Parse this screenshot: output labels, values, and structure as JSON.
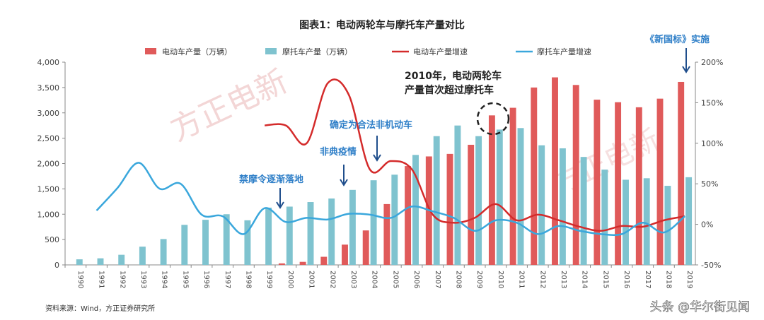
{
  "chart_data": {
    "type": "bar",
    "title": "图表1：电动两轮车与摩托车产量对比",
    "categories": [
      "1990",
      "1991",
      "1992",
      "1993",
      "1994",
      "1995",
      "1996",
      "1997",
      "1998",
      "1999",
      "2000",
      "2001",
      "2002",
      "2003",
      "2004",
      "2005",
      "2006",
      "2007",
      "2008",
      "2009",
      "2010",
      "2011",
      "2012",
      "2013",
      "2014",
      "2015",
      "2016",
      "2017",
      "2018",
      "2019"
    ],
    "series": [
      {
        "name": "电动车产量（万辆）",
        "type": "bar",
        "axis": "left",
        "color": "#e05a5a",
        "values": [
          null,
          null,
          null,
          null,
          null,
          null,
          null,
          null,
          null,
          null,
          30,
          60,
          160,
          400,
          680,
          1200,
          1950,
          2140,
          2190,
          2370,
          2950,
          3100,
          3500,
          3700,
          3550,
          3260,
          3210,
          3110,
          3280,
          3610
        ]
      },
      {
        "name": "摩托车产量（万辆）",
        "type": "bar",
        "axis": "left",
        "color": "#7fc3cf",
        "values": [
          110,
          130,
          200,
          360,
          510,
          790,
          890,
          1000,
          880,
          1130,
          1150,
          1240,
          1310,
          1480,
          1670,
          1780,
          2170,
          2540,
          2750,
          2540,
          2670,
          2700,
          2360,
          2300,
          2130,
          1880,
          1680,
          1710,
          1560,
          1730
        ]
      },
      {
        "name": "电动车产量增速",
        "type": "line",
        "axis": "right",
        "color": "#d42b2b",
        "values": [
          null,
          null,
          null,
          null,
          null,
          null,
          null,
          null,
          null,
          122,
          122,
          100,
          174,
          160,
          68,
          78,
          68,
          12,
          2,
          8,
          25,
          5,
          12,
          5,
          -3,
          -8,
          -2,
          -3,
          5,
          10
        ]
      },
      {
        "name": "摩托车产量增速",
        "type": "line",
        "axis": "right",
        "color": "#3aa7dc",
        "values": [
          null,
          17,
          45,
          76,
          44,
          50,
          12,
          10,
          -12,
          20,
          3,
          8,
          6,
          13,
          12,
          8,
          22,
          16,
          8,
          -8,
          5,
          2,
          -12,
          -2,
          -8,
          -12,
          -12,
          2,
          -10,
          10
        ]
      }
    ],
    "left_axis": {
      "range": [
        0,
        4000
      ],
      "ticks": [
        "0",
        "500",
        "1,000",
        "1,500",
        "2,000",
        "2,500",
        "3,000",
        "3,500",
        "4,000"
      ]
    },
    "right_axis": {
      "range": [
        -50,
        200
      ],
      "ticks": [
        "-50%",
        "0%",
        "50%",
        "100%",
        "150%",
        "200%"
      ]
    },
    "legend_placement": "top",
    "grid": false,
    "annotations": {
      "ban": "禁摩令逐渐落地",
      "sars": "非典疫情",
      "legal": "确定为合法非机动车",
      "overtake_1": "2010年，电动两轮车",
      "overtake_2": "产量首次超过摩托车",
      "standard": "《新国标》实施"
    }
  },
  "source": "资料来源：Wind，方正证券研究所",
  "watermark": "方正电新",
  "platform_watermark": "头条 @华尔街见闻"
}
